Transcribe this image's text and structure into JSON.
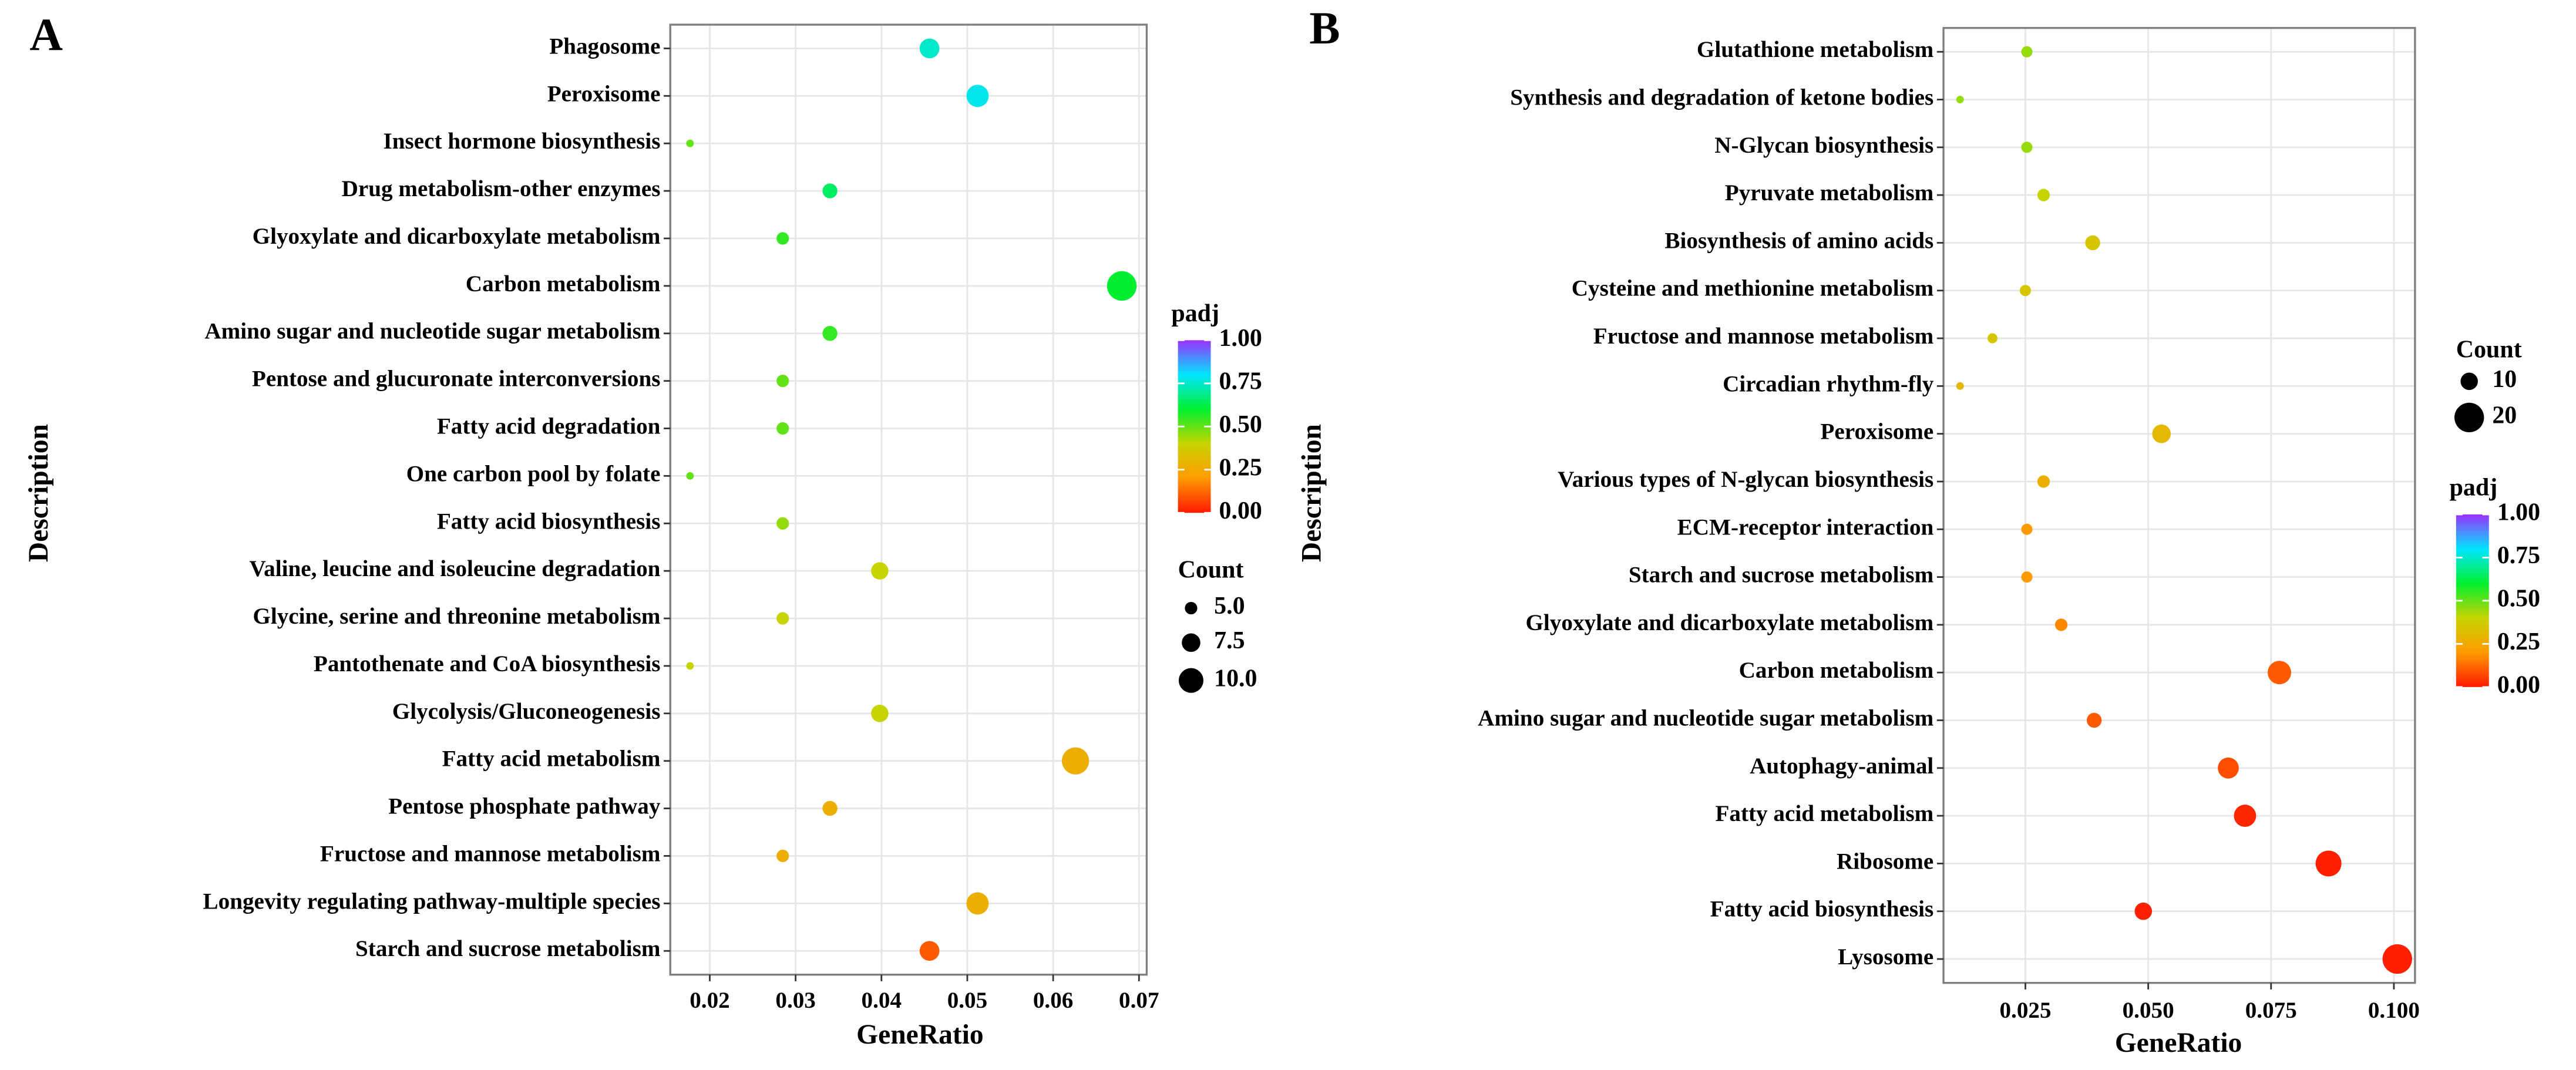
{
  "chart_data": [
    {
      "type": "scatter",
      "panel": "A",
      "x_label": "GeneRatio",
      "y_label": "Description",
      "categories": [
        "Phagosome",
        "Peroxisome",
        "Insect hormone biosynthesis",
        "Drug metabolism-other enzymes",
        "Glyoxylate and dicarboxylate metabolism",
        "Carbon metabolism",
        "Amino sugar and nucleotide sugar metabolism",
        "Pentose and glucuronate interconversions",
        "Fatty acid degradation",
        "One carbon pool by folate",
        "Fatty acid biosynthesis",
        "Valine, leucine and isoleucine degradation",
        "Glycine, serine and threonine metabolism",
        "Pantothenate and CoA biosynthesis",
        "Glycolysis/Gluconeogenesis",
        "Fatty acid metabolism",
        "Pentose phosphate pathway",
        "Fructose and mannose metabolism",
        "Longevity regulating pathway-multiple species",
        "Starch and sucrose metabolism"
      ],
      "values": [
        0.0456,
        0.0512,
        0.0177,
        0.034,
        0.0285,
        0.068,
        0.034,
        0.0285,
        0.0285,
        0.0177,
        0.0285,
        0.0398,
        0.0285,
        0.0177,
        0.0398,
        0.0626,
        0.034,
        0.0285,
        0.0512,
        0.0456
      ],
      "counts": [
        8,
        9,
        3,
        6,
        5,
        12,
        6,
        5,
        5,
        3,
        5,
        7,
        5,
        3,
        7,
        11,
        6,
        5,
        9,
        8
      ],
      "padj": [
        0.75,
        0.78,
        0.5,
        0.65,
        0.55,
        0.6,
        0.55,
        0.5,
        0.5,
        0.5,
        0.45,
        0.4,
        0.4,
        0.4,
        0.4,
        0.27,
        0.27,
        0.27,
        0.27,
        0.1
      ],
      "xlim": [
        0.0154,
        0.0709
      ],
      "xticks": [
        0.02,
        0.03,
        0.04,
        0.05,
        0.06,
        0.07
      ],
      "color_title": "padj",
      "color_lim": [
        0,
        1
      ],
      "color_ticks": [
        {
          "value": 0,
          "label": "0.00"
        },
        {
          "value": 0.25,
          "label": "0.25"
        },
        {
          "value": 0.5,
          "label": "0.50"
        },
        {
          "value": 0.75,
          "label": "0.75"
        },
        {
          "value": 1,
          "label": "1.00"
        }
      ],
      "colorscale": [
        "#ff1a00",
        "#ff9a00",
        "#c8d400",
        "#00f030",
        "#00e5ff",
        "#9b30ff"
      ],
      "size_title": "Count",
      "size_ticks": [
        {
          "value": 5,
          "label": "5.0"
        },
        {
          "value": 7.5,
          "label": "7.5"
        },
        {
          "value": 10,
          "label": "10.0"
        }
      ],
      "grid": true
    },
    {
      "type": "scatter",
      "panel": "B",
      "x_label": "GeneRatio",
      "y_label": "Description",
      "categories": [
        "Glutathione metabolism",
        "Synthesis and degradation of ketone bodies",
        "N-Glycan biosynthesis",
        "Pyruvate metabolism",
        "Biosynthesis of amino acids",
        "Cysteine and methionine metabolism",
        "Fructose and mannose metabolism",
        "Circadian rhythm-fly",
        "Peroxisome",
        "Various types of N-glycan biosynthesis",
        "ECM-receptor interaction",
        "Starch and sucrose metabolism",
        "Glyoxylate and dicarboxylate metabolism",
        "Carbon metabolism",
        "Amino sugar and nucleotide sugar metabolism",
        "Autophagy-animal",
        "Fatty acid metabolism",
        "Ribosome",
        "Fatty acid biosynthesis",
        "Lysosome"
      ],
      "values": [
        0.0253,
        0.0117,
        0.0253,
        0.0287,
        0.0387,
        0.025,
        0.0183,
        0.0117,
        0.0527,
        0.0287,
        0.0253,
        0.0253,
        0.0323,
        0.0767,
        0.039,
        0.0663,
        0.0697,
        0.0867,
        0.049,
        0.1007
      ],
      "counts": [
        5,
        2,
        5,
        6,
        8,
        5,
        4,
        2,
        11,
        6,
        5,
        5,
        6,
        15,
        8,
        13,
        14,
        17,
        10,
        20
      ],
      "padj": [
        0.45,
        0.45,
        0.45,
        0.4,
        0.35,
        0.35,
        0.35,
        0.3,
        0.3,
        0.27,
        0.2,
        0.2,
        0.17,
        0.1,
        0.1,
        0.08,
        0.02,
        0.01,
        0.01,
        0.01
      ],
      "xlim": [
        0.00833,
        0.1043
      ],
      "xticks": [
        {
          "value": 0.025,
          "label": "0.025"
        },
        {
          "value": 0.05,
          "label": "0.050"
        },
        {
          "value": 0.075,
          "label": "0.075"
        },
        {
          "value": 0.1,
          "label": "0.100"
        }
      ],
      "color_title": "padj",
      "color_lim": [
        0,
        1
      ],
      "color_ticks": [
        {
          "value": 0,
          "label": "0.00"
        },
        {
          "value": 0.25,
          "label": "0.25"
        },
        {
          "value": 0.5,
          "label": "0.50"
        },
        {
          "value": 0.75,
          "label": "0.75"
        },
        {
          "value": 1,
          "label": "1.00"
        }
      ],
      "colorscale": [
        "#ff1a00",
        "#ff9a00",
        "#c8d400",
        "#00f030",
        "#00e5ff",
        "#9b30ff"
      ],
      "size_title": "Count",
      "size_ticks": [
        10,
        20
      ],
      "grid": true
    }
  ]
}
